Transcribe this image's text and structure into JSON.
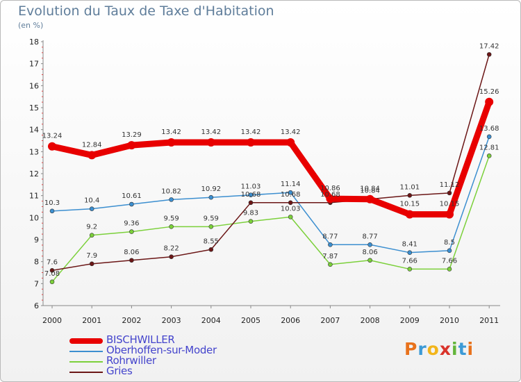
{
  "title": "Evolution du Taux de Taxe d'Habitation",
  "subtitle": "(en %)",
  "logo": {
    "text": "Proxiti",
    "colors": [
      "#e8721c",
      "#3c9ad6",
      "#f2b51b",
      "#d9332a",
      "#63b53a",
      "#3c9ad6",
      "#e8721c"
    ]
  },
  "chart_data": {
    "type": "line",
    "title": "Evolution du Taux de Taxe d'Habitation",
    "ylabel": "(en %)",
    "xlabel": "",
    "x": [
      "2000",
      "2001",
      "2002",
      "2003",
      "2004",
      "2005",
      "2006",
      "2007",
      "2008",
      "2009",
      "2010",
      "2011"
    ],
    "ylim": [
      6,
      18
    ],
    "yticks": [
      "6",
      "7",
      "8",
      "9",
      "10",
      "11",
      "12",
      "13",
      "14",
      "15",
      "16",
      "17",
      "18"
    ],
    "grid": false,
    "legend_position": "bottom-left",
    "series": [
      {
        "name": "BISCHWILLER",
        "color": "#e80000",
        "values": [
          13.24,
          12.84,
          13.29,
          13.42,
          13.42,
          13.42,
          13.42,
          10.86,
          10.84,
          10.15,
          10.15,
          15.26
        ],
        "labels": [
          "13.24",
          "12.84",
          "13.29",
          "13.42",
          "13.42",
          "13.42",
          "13.42",
          "10.86",
          "10.84",
          "10.15",
          "10.15",
          "15.26"
        ]
      },
      {
        "name": "Oberhoffen-sur-Moder",
        "color": "#3c8fd0",
        "values": [
          10.3,
          10.4,
          10.61,
          10.82,
          10.92,
          11.03,
          11.14,
          8.77,
          8.77,
          8.41,
          8.5,
          13.68
        ],
        "labels": [
          "10.3",
          "10.4",
          "10.61",
          "10.82",
          "10.92",
          "11.03",
          "11.14",
          "8.77",
          "8.77",
          "8.41",
          "8.5",
          "13.68"
        ]
      },
      {
        "name": "Rohrwiller",
        "color": "#7bd03a",
        "values": [
          7.08,
          9.2,
          9.36,
          9.59,
          9.59,
          9.83,
          10.03,
          7.87,
          8.06,
          7.66,
          7.66,
          12.81
        ],
        "labels": [
          "7.08",
          "9.2",
          "9.36",
          "9.59",
          "9.59",
          "9.83",
          "10.03",
          "7.87",
          "8.06",
          "7.66",
          "7.66",
          "12.81"
        ]
      },
      {
        "name": "Gries",
        "color": "#6b1616",
        "values": [
          7.6,
          7.9,
          8.06,
          8.22,
          8.55,
          10.68,
          10.68,
          10.68,
          10.84,
          11.01,
          11.12,
          17.42
        ],
        "labels": [
          "7.6",
          "7.9",
          "8.06",
          "8.22",
          "8.55",
          "10.68",
          "10.68",
          "10.68",
          "10.84",
          "11.01",
          "11.12",
          "17.42"
        ]
      }
    ]
  }
}
